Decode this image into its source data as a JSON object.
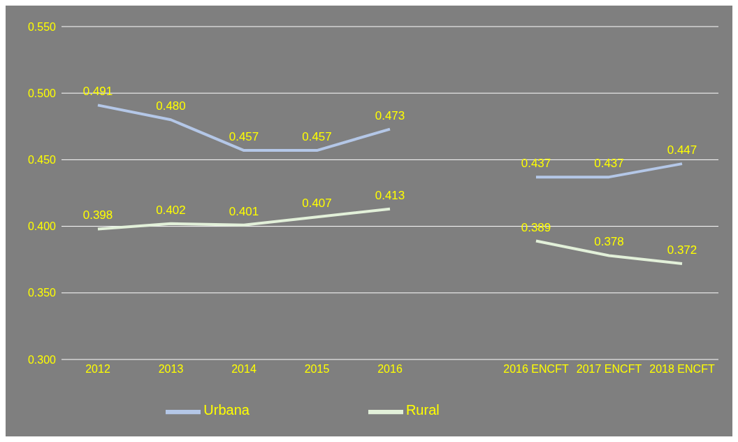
{
  "chart_data": {
    "type": "line",
    "categories": [
      "2012",
      "2013",
      "2014",
      "2015",
      "2016",
      null,
      "2016 ENCFT",
      "2017 ENCFT",
      "2018 ENCFT"
    ],
    "series": [
      {
        "name": "Urbana",
        "color": "#b4c7e7",
        "values": [
          0.491,
          0.48,
          0.457,
          0.457,
          0.473,
          null,
          0.437,
          0.437,
          0.447
        ],
        "value_labels": [
          "0.491",
          "0.480",
          "0.457",
          "0.457",
          "0.473",
          null,
          "0.437",
          "0.437",
          "0.447"
        ]
      },
      {
        "name": "Rural",
        "color": "#e2f0d9",
        "values": [
          0.398,
          0.402,
          0.401,
          0.407,
          0.413,
          null,
          0.389,
          0.378,
          0.372
        ],
        "value_labels": [
          "0.398",
          "0.402",
          "0.401",
          "0.407",
          "0.413",
          null,
          "0.389",
          "0.378",
          "0.372"
        ]
      }
    ],
    "ylim": [
      0.3,
      0.55
    ],
    "yticks": [
      {
        "value": 0.3,
        "label": "0.300"
      },
      {
        "value": 0.35,
        "label": "0.350"
      },
      {
        "value": 0.4,
        "label": "0.400"
      },
      {
        "value": 0.45,
        "label": "0.450"
      },
      {
        "value": 0.5,
        "label": "0.500"
      },
      {
        "value": 0.55,
        "label": "0.550"
      }
    ],
    "grid": "y",
    "legend": "bottom",
    "marker": "none",
    "line_style": "solid"
  }
}
